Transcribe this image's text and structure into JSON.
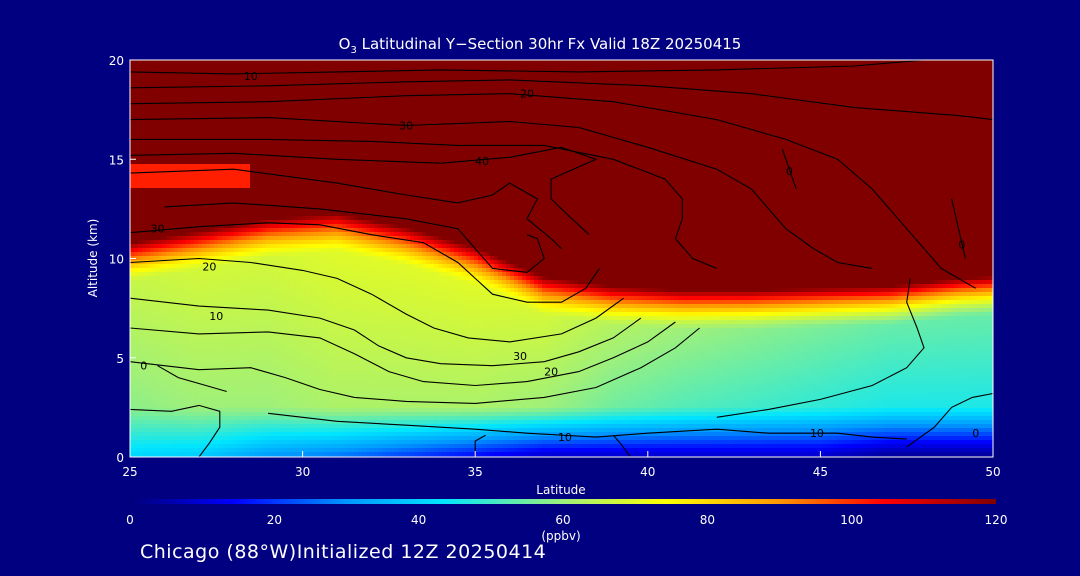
{
  "chart_data": {
    "type": "heatmap",
    "title_prefix": "O",
    "title_sub": "3",
    "title_suffix": " Latitudinal Y−Section 30hr  Fx Valid 18Z 20250415",
    "xlabel": "Latitude",
    "ylabel": "Altitude (km)",
    "xlim": [
      25,
      50
    ],
    "ylim": [
      0,
      20
    ],
    "x_ticks": [
      25,
      30,
      35,
      40,
      45,
      50
    ],
    "y_ticks": [
      0,
      5,
      10,
      15,
      20
    ],
    "colorbar": {
      "ticks": [
        0,
        20,
        40,
        60,
        80,
        100,
        120
      ],
      "unit": "(ppbv)",
      "range": [
        0,
        120
      ]
    },
    "field_profile": {
      "latitudes": [
        25,
        27,
        29,
        31,
        33,
        35,
        37,
        39,
        41,
        43,
        45,
        47,
        49,
        50
      ],
      "tropopause_km": [
        10.0,
        10.6,
        11.2,
        11.5,
        10.8,
        9.8,
        8.3,
        7.8,
        7.6,
        7.6,
        7.7,
        7.8,
        8.2,
        8.3
      ],
      "surface_ppbv": [
        40,
        38,
        30,
        26,
        20,
        14,
        8,
        8,
        8,
        8,
        8,
        2,
        2,
        2
      ],
      "boundary_ppbv": [
        58,
        60,
        60,
        62,
        62,
        62,
        60,
        55,
        52,
        50,
        48,
        46,
        46,
        46
      ],
      "jet_layer": {
        "lat_end": 28.5,
        "alt_range_km": [
          13.5,
          14.8
        ]
      }
    },
    "contours": [
      {
        "label": "10",
        "label_at": [
          28.5,
          19.2
        ],
        "points": [
          [
            25,
            19.4
          ],
          [
            28,
            19.3
          ],
          [
            31,
            19.4
          ],
          [
            34,
            19.5
          ],
          [
            38,
            19.4
          ],
          [
            42,
            19.5
          ],
          [
            46,
            19.7
          ],
          [
            48,
            20
          ]
        ]
      },
      {
        "label": "",
        "label_at": null,
        "points": [
          [
            25,
            18.6
          ],
          [
            29,
            18.7
          ],
          [
            33,
            18.9
          ],
          [
            36,
            19.0
          ],
          [
            40,
            18.7
          ],
          [
            43,
            18.3
          ],
          [
            46,
            17.6
          ],
          [
            49,
            17.2
          ],
          [
            50,
            17.0
          ]
        ]
      },
      {
        "label": "20",
        "label_at": [
          36.5,
          18.3
        ],
        "points": [
          [
            25,
            17.8
          ],
          [
            29,
            17.9
          ],
          [
            33,
            18.2
          ],
          [
            36,
            18.3
          ],
          [
            39,
            17.9
          ],
          [
            42,
            17.0
          ],
          [
            44,
            16.0
          ],
          [
            45.5,
            15.0
          ],
          [
            46.5,
            13.5
          ],
          [
            47.5,
            11.5
          ],
          [
            48.5,
            9.5
          ],
          [
            49.5,
            8.5
          ]
        ]
      },
      {
        "label": "30",
        "label_at": [
          33,
          16.7
        ],
        "points": [
          [
            25,
            17.0
          ],
          [
            29,
            17.1
          ],
          [
            33,
            16.7
          ],
          [
            36,
            16.9
          ],
          [
            38,
            16.6
          ],
          [
            40,
            15.6
          ],
          [
            42,
            14.5
          ],
          [
            43,
            13.5
          ],
          [
            43.5,
            12.5
          ],
          [
            44,
            11.5
          ],
          [
            44.8,
            10.5
          ],
          [
            45.5,
            9.8
          ],
          [
            46.5,
            9.5
          ]
        ]
      },
      {
        "label": "",
        "label_at": null,
        "points": [
          [
            25,
            16.0
          ],
          [
            29,
            16.0
          ],
          [
            32,
            15.9
          ],
          [
            34.5,
            15.7
          ],
          [
            37,
            15.7
          ],
          [
            39,
            15.0
          ],
          [
            40.5,
            14.0
          ],
          [
            41,
            13.0
          ],
          [
            41,
            12.0
          ],
          [
            40.8,
            11.0
          ],
          [
            41.3,
            10.0
          ],
          [
            42,
            9.5
          ]
        ]
      },
      {
        "label": "40",
        "label_at": [
          35.2,
          14.9
        ],
        "points": [
          [
            25,
            15.2
          ],
          [
            28,
            15.3
          ],
          [
            31,
            15.0
          ],
          [
            34,
            14.8
          ],
          [
            36,
            15.1
          ],
          [
            37.5,
            15.6
          ],
          [
            38.5,
            15.0
          ],
          [
            37.2,
            14.0
          ],
          [
            37.2,
            13.0
          ],
          [
            37.8,
            12.0
          ],
          [
            38.3,
            11.2
          ]
        ]
      },
      {
        "label": "",
        "label_at": null,
        "points": [
          [
            25,
            14.3
          ],
          [
            28,
            14.5
          ],
          [
            31,
            13.8
          ],
          [
            33,
            13.2
          ],
          [
            34.5,
            12.8
          ],
          [
            35.5,
            13.2
          ],
          [
            36,
            13.8
          ],
          [
            36.8,
            13.0
          ],
          [
            36.5,
            12.0
          ],
          [
            37.2,
            11.0
          ],
          [
            37.5,
            10.5
          ]
        ]
      },
      {
        "label": "",
        "label_at": null,
        "points": [
          [
            26,
            12.6
          ],
          [
            28,
            12.8
          ],
          [
            30.5,
            12.5
          ],
          [
            33,
            12.0
          ],
          [
            34.5,
            11.5
          ],
          [
            35,
            10.5
          ],
          [
            35.5,
            9.5
          ],
          [
            36.5,
            9.3
          ],
          [
            37.0,
            10.0
          ],
          [
            36.8,
            11.0
          ],
          [
            36.5,
            11.2
          ]
        ]
      },
      {
        "label": "30",
        "label_at": [
          25.8,
          11.5
        ],
        "points": [
          [
            25,
            11.3
          ],
          [
            27,
            11.6
          ],
          [
            29,
            11.8
          ],
          [
            30.5,
            11.7
          ],
          [
            32,
            11.2
          ],
          [
            33.5,
            10.8
          ],
          [
            34.5,
            9.8
          ],
          [
            35,
            9.0
          ],
          [
            35.5,
            8.2
          ],
          [
            36.5,
            7.8
          ],
          [
            37.5,
            7.8
          ],
          [
            38.2,
            8.5
          ],
          [
            38.6,
            9.5
          ]
        ]
      },
      {
        "label": "20",
        "label_at": [
          27.3,
          9.6
        ],
        "points": [
          [
            25,
            9.8
          ],
          [
            27,
            10.0
          ],
          [
            28.5,
            9.8
          ],
          [
            30,
            9.4
          ],
          [
            31,
            9.0
          ],
          [
            32,
            8.2
          ],
          [
            33,
            7.2
          ],
          [
            33.8,
            6.5
          ],
          [
            34.8,
            6.0
          ],
          [
            36,
            5.8
          ],
          [
            37.5,
            6.2
          ],
          [
            38.5,
            7.0
          ],
          [
            39.3,
            8.0
          ]
        ]
      },
      {
        "label": "10",
        "label_at": [
          27.5,
          7.1
        ],
        "points": [
          [
            25,
            8.0
          ],
          [
            27,
            7.6
          ],
          [
            29,
            7.4
          ],
          [
            30.5,
            7.0
          ],
          [
            31.5,
            6.4
          ],
          [
            32.2,
            5.6
          ],
          [
            33,
            5.0
          ],
          [
            34,
            4.7
          ],
          [
            35.5,
            4.6
          ],
          [
            37,
            4.8
          ],
          [
            38,
            5.3
          ],
          [
            39,
            6.0
          ],
          [
            39.8,
            7.0
          ]
        ]
      },
      {
        "label": "30",
        "label_at": [
          36.3,
          5.1
        ],
        "points": [
          [
            25,
            6.5
          ],
          [
            27,
            6.2
          ],
          [
            29,
            6.3
          ],
          [
            30.5,
            6.0
          ],
          [
            31.5,
            5.2
          ],
          [
            32.5,
            4.3
          ],
          [
            33.5,
            3.8
          ],
          [
            35,
            3.6
          ],
          [
            36.5,
            3.8
          ],
          [
            38,
            4.3
          ],
          [
            39,
            5.0
          ],
          [
            40,
            5.8
          ],
          [
            40.8,
            6.8
          ]
        ]
      },
      {
        "label": "20",
        "label_at": [
          37.2,
          4.3
        ],
        "points": [
          [
            25,
            4.8
          ],
          [
            26,
            4.6
          ],
          [
            27,
            4.4
          ],
          [
            28.5,
            4.5
          ],
          [
            29.5,
            4.0
          ],
          [
            30.5,
            3.4
          ],
          [
            31.5,
            3.0
          ],
          [
            33,
            2.8
          ],
          [
            35,
            2.7
          ],
          [
            37,
            3.0
          ],
          [
            38.5,
            3.5
          ],
          [
            39.8,
            4.5
          ],
          [
            40.8,
            5.5
          ],
          [
            41.5,
            6.5
          ]
        ]
      },
      {
        "label": "0",
        "label_at": [
          25.4,
          4.6
        ],
        "points": [
          [
            25.8,
            4.6
          ],
          [
            26.4,
            4.0
          ],
          [
            27.2,
            3.6
          ],
          [
            27.8,
            3.3
          ]
        ]
      },
      {
        "label": "",
        "label_at": null,
        "points": [
          [
            25,
            2.4
          ],
          [
            26.2,
            2.3
          ],
          [
            27.0,
            2.6
          ],
          [
            27.6,
            2.3
          ],
          [
            27.6,
            1.5
          ],
          [
            27.3,
            0.7
          ],
          [
            27.0,
            0
          ]
        ]
      },
      {
        "label": "10",
        "label_at": [
          37.6,
          1.0
        ],
        "points": [
          [
            29,
            2.2
          ],
          [
            31,
            1.8
          ],
          [
            33,
            1.6
          ],
          [
            35,
            1.4
          ],
          [
            36.5,
            1.2
          ],
          [
            38.5,
            1.0
          ],
          [
            40,
            1.2
          ],
          [
            42,
            1.4
          ],
          [
            43.5,
            1.2
          ],
          [
            45.5,
            1.2
          ],
          [
            46.5,
            1.0
          ],
          [
            47.5,
            0.9
          ]
        ]
      },
      {
        "label": "10",
        "label_at": [
          44.9,
          1.2
        ],
        "points": [
          [
            42,
            2.0
          ],
          [
            43.5,
            2.4
          ],
          [
            45,
            2.9
          ],
          [
            46.5,
            3.6
          ],
          [
            47.5,
            4.5
          ],
          [
            48,
            5.5
          ],
          [
            47.8,
            6.5
          ],
          [
            47.5,
            7.8
          ],
          [
            47.6,
            9.0
          ]
        ]
      },
      {
        "label": "0",
        "label_at": [
          49.5,
          1.2
        ],
        "points": [
          [
            47.5,
            0.5
          ],
          [
            48.3,
            1.5
          ],
          [
            48.8,
            2.5
          ],
          [
            49.4,
            3.0
          ],
          [
            50,
            3.2
          ]
        ]
      },
      {
        "label": "",
        "label_at": null,
        "points": [
          [
            35,
            0
          ],
          [
            35,
            0.8
          ],
          [
            35.3,
            1.1
          ]
        ]
      },
      {
        "label": "",
        "label_at": null,
        "points": [
          [
            39.5,
            0
          ],
          [
            39.2,
            0.7
          ],
          [
            39.0,
            1.1
          ]
        ]
      },
      {
        "label": "0",
        "label_at": [
          44.1,
          14.4
        ],
        "points": [
          [
            43.9,
            15.5
          ],
          [
            44.1,
            14.5
          ],
          [
            44.3,
            13.5
          ]
        ]
      },
      {
        "label": "0",
        "label_at": [
          49.1,
          10.7
        ],
        "points": [
          [
            48.8,
            13.0
          ],
          [
            49.0,
            11.5
          ],
          [
            49.2,
            10.0
          ]
        ]
      }
    ]
  },
  "footer": {
    "location": "Chicago (88°W)",
    "init_text": "Initialized 12Z 20250414"
  }
}
